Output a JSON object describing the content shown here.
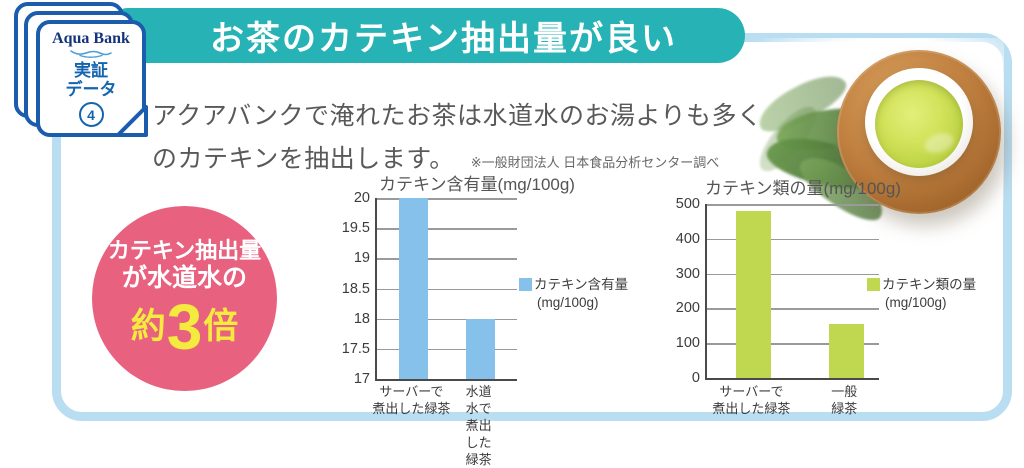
{
  "badge": {
    "logo_text": "Aqua Bank",
    "label_line1": "実証",
    "label_line2": "データ",
    "number": "4"
  },
  "banner": {
    "title": "お茶のカテキン抽出量が良い"
  },
  "intro": {
    "line1": "アクアバンクで淹れたお茶は水道水のお湯よりも多く",
    "line2": "のカテキンを抽出します。",
    "source_note": "※一般財団法人 日本食品分析センター調べ"
  },
  "highlight_badge": {
    "line1": "カテキン抽出量",
    "line2": "が水道水の",
    "big_prefix": "約",
    "big_number": "3",
    "big_suffix": "倍"
  },
  "colors": {
    "banner_teal": "#27b3b6",
    "panel_border_blue": "#b9ddf1",
    "badge_blue": "#1b5cad",
    "highlight_pink": "#e8617f",
    "highlight_yellow": "#f4eb3e",
    "bar_blue": "#85c1ea",
    "bar_green": "#c0d84f"
  },
  "chart_data": [
    {
      "type": "bar",
      "title": "カテキン含有量(mg/100g)",
      "categories": [
        "サーバーで\n煮出した緑茶",
        "水道水で\n煮出した緑茶"
      ],
      "values": [
        20,
        18
      ],
      "ylim": [
        17,
        20
      ],
      "yticks": [
        20,
        19.5,
        19,
        18.5,
        18,
        17.5,
        17
      ],
      "grid": true,
      "legend_position": "right",
      "bar_color": "#85c1ea",
      "legend": {
        "label": "カテキン含有量",
        "sublabel": "(mg/100g)"
      }
    },
    {
      "type": "bar",
      "title": "カテキン類の量(mg/100g)",
      "categories": [
        "サーバーで\n煮出した緑茶",
        "一般緑茶"
      ],
      "values": [
        480,
        155
      ],
      "ylim": [
        0,
        500
      ],
      "yticks": [
        500,
        400,
        300,
        200,
        100,
        0
      ],
      "grid": true,
      "legend_position": "right",
      "bar_color": "#c0d84f",
      "legend": {
        "label": "カテキン類の量",
        "sublabel": "(mg/100g)"
      }
    }
  ]
}
